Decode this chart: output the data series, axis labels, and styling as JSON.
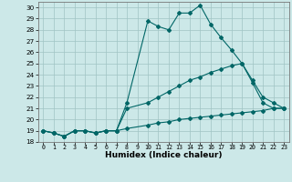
{
  "xlabel": "Humidex (Indice chaleur)",
  "bg_color": "#cce8e8",
  "line_color": "#006666",
  "ylim": [
    18,
    30.5
  ],
  "xlim": [
    -0.5,
    23.5
  ],
  "yticks": [
    18,
    19,
    20,
    21,
    22,
    23,
    24,
    25,
    26,
    27,
    28,
    29,
    30
  ],
  "xticks": [
    0,
    1,
    2,
    3,
    4,
    5,
    6,
    7,
    8,
    9,
    10,
    11,
    12,
    13,
    14,
    15,
    16,
    17,
    18,
    19,
    20,
    21,
    22,
    23
  ],
  "series": [
    {
      "x": [
        0,
        1,
        2,
        3,
        4,
        5,
        6,
        7,
        8,
        10,
        11,
        12,
        13,
        14,
        15,
        16,
        17,
        18,
        19,
        20,
        21,
        22,
        23
      ],
      "y": [
        19.0,
        18.8,
        18.5,
        19.0,
        19.0,
        18.8,
        19.0,
        19.0,
        21.5,
        28.8,
        28.3,
        28.0,
        29.5,
        29.5,
        30.2,
        28.5,
        27.3,
        26.2,
        25.0,
        23.3,
        21.5,
        21.0,
        21.0
      ]
    },
    {
      "x": [
        0,
        1,
        2,
        3,
        4,
        5,
        6,
        7,
        8,
        10,
        11,
        12,
        13,
        14,
        15,
        16,
        17,
        18,
        19,
        20,
        21,
        22,
        23
      ],
      "y": [
        19.0,
        18.8,
        18.5,
        19.0,
        19.0,
        18.8,
        19.0,
        19.0,
        21.0,
        21.5,
        22.0,
        22.5,
        23.0,
        23.5,
        23.8,
        24.2,
        24.5,
        24.8,
        25.0,
        23.5,
        22.0,
        21.5,
        21.0
      ]
    },
    {
      "x": [
        0,
        1,
        2,
        3,
        4,
        5,
        6,
        7,
        8,
        10,
        11,
        12,
        13,
        14,
        15,
        16,
        17,
        18,
        19,
        20,
        21,
        22,
        23
      ],
      "y": [
        19.0,
        18.8,
        18.5,
        19.0,
        19.0,
        18.8,
        19.0,
        19.0,
        19.2,
        19.5,
        19.7,
        19.8,
        20.0,
        20.1,
        20.2,
        20.3,
        20.4,
        20.5,
        20.6,
        20.7,
        20.8,
        21.0,
        21.0
      ]
    }
  ]
}
